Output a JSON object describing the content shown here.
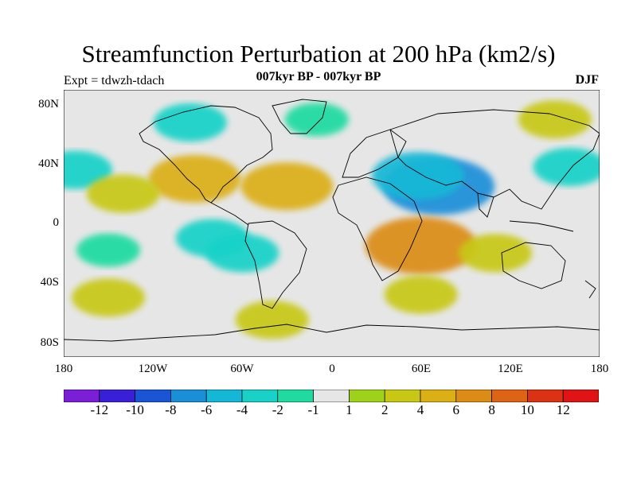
{
  "header": {
    "title": "Streamfunction Perturbation at 200 hPa (km2/s)",
    "subtitle": "007kyr BP - 007kyr BP",
    "left_label": "Expt = tdwzh-tdach",
    "right_label": "DJF"
  },
  "map": {
    "projection": "cylindrical-equidistant",
    "lon_range": [
      -180,
      180
    ],
    "lat_range": [
      -90,
      90
    ],
    "lat_ticks": [
      "80N",
      "40N",
      "0",
      "40S",
      "80S"
    ],
    "lon_ticks": [
      "180",
      "120W",
      "60W",
      "0",
      "60E",
      "120E",
      "180"
    ],
    "background_color": "#e6e6e6"
  },
  "colorbar": {
    "colors": [
      "#7b1fd6",
      "#3a1fd9",
      "#1a55d6",
      "#1a8fd9",
      "#14b8d6",
      "#18d2c8",
      "#1fdba0",
      "#e6e6e6",
      "#9ed21a",
      "#c8c814",
      "#dcaf14",
      "#dc8c14",
      "#dc6414",
      "#dc3214",
      "#e01414"
    ],
    "labels": [
      "-12",
      "-10",
      "-8",
      "-6",
      "-4",
      "-2",
      "-1",
      "1",
      "2",
      "4",
      "6",
      "8",
      "10",
      "12"
    ]
  },
  "fields": {
    "anomalies": [
      {
        "sign": "neg",
        "level": "-6",
        "lon": 72,
        "lat": 25
      },
      {
        "sign": "neg",
        "level": "-4",
        "lon": 58,
        "lat": 32
      },
      {
        "sign": "neg",
        "level": "-2",
        "lon": -95,
        "lat": 68
      },
      {
        "sign": "neg",
        "level": "-2",
        "lon": -80,
        "lat": -10
      },
      {
        "sign": "neg",
        "level": "-2",
        "lon": -60,
        "lat": -20
      },
      {
        "sign": "neg",
        "level": "-2",
        "lon": 160,
        "lat": 38
      },
      {
        "sign": "neg",
        "level": "-2",
        "lon": -172,
        "lat": 36
      },
      {
        "sign": "neg",
        "level": "-1",
        "lon": -150,
        "lat": -18
      },
      {
        "sign": "neg",
        "level": "-1",
        "lon": -10,
        "lat": 70
      },
      {
        "sign": "pos",
        "level": "4",
        "lon": -30,
        "lat": 25
      },
      {
        "sign": "pos",
        "level": "4",
        "lon": -92,
        "lat": 30
      },
      {
        "sign": "pos",
        "level": "6",
        "lon": 60,
        "lat": -15
      },
      {
        "sign": "pos",
        "level": "2",
        "lon": -140,
        "lat": 20
      },
      {
        "sign": "pos",
        "level": "2",
        "lon": 110,
        "lat": -20
      },
      {
        "sign": "pos",
        "level": "2",
        "lon": -150,
        "lat": -50
      },
      {
        "sign": "pos",
        "level": "2",
        "lon": 60,
        "lat": -48
      },
      {
        "sign": "pos",
        "level": "2",
        "lon": -40,
        "lat": -65
      },
      {
        "sign": "pos",
        "level": "2",
        "lon": 150,
        "lat": 70
      }
    ]
  }
}
